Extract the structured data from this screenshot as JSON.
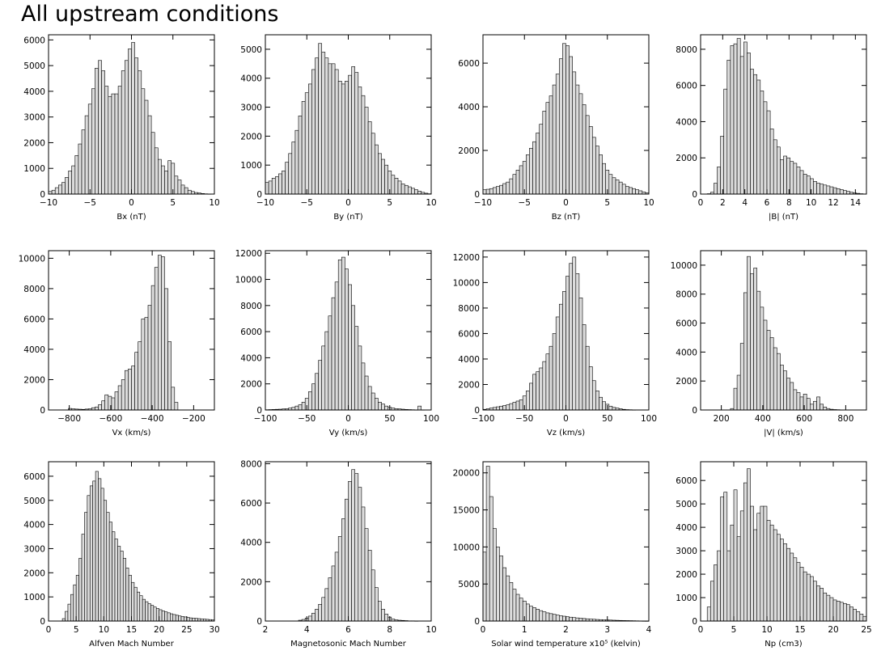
{
  "page": {
    "title": "All upstream conditions"
  },
  "chart_data": [
    {
      "type": "bar",
      "xlabel": "Bx (nT)",
      "ylabel": "",
      "xlim": [
        -10,
        10
      ],
      "ylim": [
        0,
        6200
      ],
      "xticks": [
        -10,
        -5,
        0,
        5,
        10
      ],
      "yticks": [
        0,
        1000,
        2000,
        3000,
        4000,
        5000,
        6000
      ],
      "bin_start": -10,
      "bin_width": 0.4,
      "values": [
        100,
        150,
        250,
        350,
        450,
        650,
        900,
        1100,
        1500,
        1950,
        2500,
        3050,
        3500,
        4100,
        4900,
        5200,
        4800,
        4200,
        3800,
        3900,
        3900,
        4200,
        4800,
        5200,
        5650,
        5900,
        5300,
        4800,
        4100,
        3650,
        3050,
        2400,
        1800,
        1350,
        1100,
        900,
        1300,
        1200,
        700,
        550,
        350,
        250,
        150,
        100,
        60,
        40,
        20,
        10,
        5,
        0
      ]
    },
    {
      "type": "bar",
      "xlabel": "By (nT)",
      "ylabel": "",
      "xlim": [
        -10,
        10
      ],
      "ylim": [
        0,
        5500
      ],
      "xticks": [
        -10,
        -5,
        0,
        5,
        10
      ],
      "yticks": [
        0,
        1000,
        2000,
        3000,
        4000,
        5000
      ],
      "bin_start": -10,
      "bin_width": 0.4,
      "values": [
        400,
        450,
        550,
        600,
        700,
        800,
        1100,
        1400,
        1800,
        2200,
        2700,
        3200,
        3500,
        3800,
        4300,
        4700,
        5200,
        4900,
        4700,
        4500,
        4500,
        4300,
        3900,
        3800,
        3900,
        4100,
        4400,
        4200,
        3700,
        3400,
        3000,
        2500,
        2100,
        1700,
        1400,
        1200,
        1000,
        800,
        650,
        550,
        450,
        350,
        300,
        250,
        200,
        150,
        100,
        60,
        30,
        10
      ]
    },
    {
      "type": "bar",
      "xlabel": "Bz (nT)",
      "ylabel": "",
      "xlim": [
        -10,
        10
      ],
      "ylim": [
        0,
        7300
      ],
      "xticks": [
        -10,
        -5,
        0,
        5,
        10
      ],
      "yticks": [
        0,
        2000,
        4000,
        6000
      ],
      "bin_start": -10,
      "bin_width": 0.4,
      "values": [
        200,
        220,
        250,
        300,
        350,
        400,
        480,
        550,
        700,
        900,
        1100,
        1300,
        1500,
        1800,
        2100,
        2400,
        2800,
        3200,
        3800,
        4200,
        4500,
        5000,
        5500,
        6200,
        6900,
        6800,
        6300,
        5600,
        5000,
        4600,
        4100,
        3600,
        3100,
        2600,
        2200,
        1800,
        1400,
        1100,
        900,
        750,
        650,
        550,
        450,
        350,
        300,
        250,
        200,
        150,
        100,
        60
      ]
    },
    {
      "type": "bar",
      "xlabel": "|B| (nT)",
      "ylabel": "",
      "xlim": [
        0,
        15
      ],
      "ylim": [
        0,
        8800
      ],
      "xticks": [
        0,
        2,
        4,
        6,
        8,
        10,
        12,
        14
      ],
      "yticks": [
        0,
        2000,
        4000,
        6000,
        8000
      ],
      "bin_start": 0,
      "bin_width": 0.3,
      "values": [
        0,
        0,
        20,
        100,
        600,
        1500,
        3200,
        5800,
        7400,
        8200,
        8300,
        8600,
        7600,
        8400,
        7800,
        6900,
        6600,
        6300,
        5700,
        5100,
        4600,
        3600,
        3000,
        2600,
        1900,
        2100,
        2000,
        1800,
        1700,
        1500,
        1300,
        1100,
        1000,
        850,
        700,
        600,
        550,
        500,
        450,
        400,
        350,
        300,
        250,
        200,
        150,
        100,
        60,
        40,
        20,
        10
      ]
    },
    {
      "type": "bar",
      "xlabel": "Vx (km/s)",
      "ylabel": "",
      "xlim": [
        -900,
        -100
      ],
      "ylim": [
        0,
        10500
      ],
      "xticks": [
        -800,
        -600,
        -400,
        -200
      ],
      "yticks": [
        0,
        2000,
        4000,
        6000,
        8000,
        10000
      ],
      "bin_start": -900,
      "bin_width": 16,
      "values": [
        0,
        0,
        0,
        0,
        0,
        0,
        100,
        80,
        60,
        50,
        40,
        60,
        80,
        150,
        200,
        350,
        600,
        1000,
        900,
        800,
        1200,
        1600,
        2000,
        2600,
        2700,
        2900,
        3800,
        4500,
        6000,
        6100,
        6900,
        8200,
        9400,
        10200,
        10100,
        8000,
        4500,
        1500,
        500,
        0,
        0,
        0,
        0,
        0,
        0,
        0,
        0,
        0,
        0,
        0
      ]
    },
    {
      "type": "bar",
      "xlabel": "Vy (km/s)",
      "ylabel": "",
      "xlim": [
        -100,
        100
      ],
      "ylim": [
        0,
        12200
      ],
      "xticks": [
        -100,
        -50,
        0,
        50,
        100
      ],
      "yticks": [
        0,
        2000,
        4000,
        6000,
        8000,
        10000,
        12000
      ],
      "bin_start": -100,
      "bin_width": 4,
      "values": [
        20,
        30,
        40,
        50,
        60,
        80,
        100,
        150,
        200,
        300,
        400,
        600,
        900,
        1400,
        2000,
        2800,
        3800,
        4900,
        6000,
        7200,
        8600,
        9800,
        11500,
        11700,
        10800,
        9600,
        8000,
        6400,
        4900,
        3600,
        2600,
        1800,
        1300,
        900,
        600,
        450,
        300,
        200,
        150,
        100,
        80,
        60,
        40,
        30,
        20,
        10,
        300,
        10,
        0,
        0
      ]
    },
    {
      "type": "bar",
      "xlabel": "Vz (km/s)",
      "ylabel": "",
      "xlim": [
        -100,
        100
      ],
      "ylim": [
        0,
        12500
      ],
      "xticks": [
        -100,
        -50,
        0,
        50,
        100
      ],
      "yticks": [
        0,
        2000,
        4000,
        6000,
        8000,
        10000,
        12000
      ],
      "bin_start": -100,
      "bin_width": 4,
      "values": [
        50,
        100,
        150,
        200,
        250,
        300,
        350,
        400,
        500,
        600,
        700,
        800,
        1100,
        1500,
        2100,
        2800,
        3000,
        3300,
        3800,
        4400,
        5000,
        6000,
        7300,
        8300,
        9300,
        10500,
        11500,
        12000,
        10700,
        8800,
        6700,
        5000,
        3400,
        2300,
        1500,
        1000,
        650,
        450,
        300,
        200,
        150,
        100,
        50,
        30,
        20,
        10,
        0,
        0,
        0,
        0
      ]
    },
    {
      "type": "bar",
      "xlabel": "|V| (km/s)",
      "ylabel": "",
      "xlim": [
        100,
        900
      ],
      "ylim": [
        0,
        11000
      ],
      "xticks": [
        200,
        400,
        600,
        800
      ],
      "yticks": [
        0,
        2000,
        4000,
        6000,
        8000,
        10000
      ],
      "bin_start": 100,
      "bin_width": 16,
      "values": [
        0,
        0,
        0,
        0,
        0,
        0,
        0,
        0,
        0,
        100,
        1500,
        2400,
        4600,
        8100,
        10600,
        9400,
        9800,
        8200,
        7100,
        6200,
        5500,
        5000,
        4300,
        3900,
        3100,
        2700,
        2200,
        1900,
        1400,
        1200,
        900,
        1100,
        800,
        400,
        600,
        900,
        400,
        200,
        100,
        50,
        30,
        20,
        10,
        0,
        0,
        0,
        0,
        0,
        0,
        0
      ]
    },
    {
      "type": "bar",
      "xlabel": "Alfven Mach Number",
      "ylabel": "",
      "xlim": [
        0,
        30
      ],
      "ylim": [
        0,
        6600
      ],
      "xticks": [
        0,
        5,
        10,
        15,
        20,
        25,
        30
      ],
      "yticks": [
        0,
        1000,
        2000,
        3000,
        4000,
        5000,
        6000
      ],
      "bin_start": 0,
      "bin_width": 0.5,
      "values": [
        0,
        0,
        0,
        0,
        0,
        100,
        400,
        700,
        1100,
        1500,
        1900,
        2600,
        3600,
        4500,
        5200,
        5600,
        5800,
        6200,
        5900,
        5500,
        5000,
        4500,
        4100,
        3700,
        3400,
        3100,
        2900,
        2600,
        2200,
        1900,
        1600,
        1400,
        1200,
        1050,
        900,
        800,
        720,
        650,
        580,
        520,
        470,
        420,
        380,
        340,
        300,
        270,
        240,
        210,
        190,
        170,
        150,
        130,
        120,
        110,
        100,
        90,
        80,
        70,
        60,
        50
      ]
    },
    {
      "type": "bar",
      "xlabel": "Magnetosonic Mach Number",
      "ylabel": "",
      "xlim": [
        2,
        10
      ],
      "ylim": [
        0,
        8100
      ],
      "xticks": [
        2,
        4,
        6,
        8,
        10
      ],
      "yticks": [
        0,
        2000,
        4000,
        6000,
        8000
      ],
      "bin_start": 2,
      "bin_width": 0.16,
      "values": [
        0,
        0,
        0,
        0,
        0,
        0,
        0,
        0,
        0,
        0,
        40,
        80,
        150,
        250,
        400,
        600,
        850,
        1200,
        1650,
        2200,
        2800,
        3500,
        4300,
        5200,
        6200,
        7100,
        7700,
        7500,
        6800,
        5800,
        4700,
        3600,
        2600,
        1700,
        1000,
        600,
        350,
        200,
        100,
        60,
        40,
        30,
        20,
        10,
        10,
        5,
        0,
        0,
        0,
        0
      ]
    },
    {
      "type": "bar",
      "xlabel": "Solar wind temperature x10⁵ (kelvin)",
      "ylabel": "",
      "xlim": [
        0,
        4
      ],
      "ylim": [
        0,
        21500
      ],
      "xticks": [
        0,
        1,
        2,
        3,
        4
      ],
      "yticks": [
        0,
        5000,
        10000,
        15000,
        20000
      ],
      "bin_start": 0,
      "bin_width": 0.08,
      "values": [
        9300,
        20900,
        16800,
        12500,
        10000,
        8800,
        7200,
        6100,
        5200,
        4300,
        3600,
        3100,
        2700,
        2300,
        2000,
        1800,
        1600,
        1400,
        1250,
        1100,
        1000,
        900,
        800,
        720,
        650,
        580,
        520,
        470,
        420,
        380,
        340,
        300,
        270,
        240,
        210,
        190,
        170,
        150,
        130,
        110,
        95,
        80,
        70,
        60,
        50,
        40,
        30,
        20,
        10,
        5
      ]
    },
    {
      "type": "bar",
      "xlabel": "Np (cm3)",
      "ylabel": "",
      "xlim": [
        0,
        25
      ],
      "ylim": [
        0,
        6800
      ],
      "xticks": [
        0,
        5,
        10,
        15,
        20,
        25
      ],
      "yticks": [
        0,
        1000,
        2000,
        3000,
        4000,
        5000,
        6000
      ],
      "bin_start": 0,
      "bin_width": 0.5,
      "values": [
        0,
        0,
        600,
        1700,
        2400,
        3000,
        5300,
        5500,
        3000,
        4100,
        5600,
        3600,
        4700,
        5900,
        6500,
        4900,
        3900,
        4600,
        4900,
        4900,
        4300,
        4100,
        3900,
        3700,
        3500,
        3300,
        3100,
        2900,
        2700,
        2500,
        2300,
        2100,
        2000,
        1900,
        1700,
        1500,
        1400,
        1200,
        1100,
        1000,
        900,
        850,
        800,
        750,
        700,
        600,
        500,
        400,
        300,
        200
      ]
    }
  ]
}
